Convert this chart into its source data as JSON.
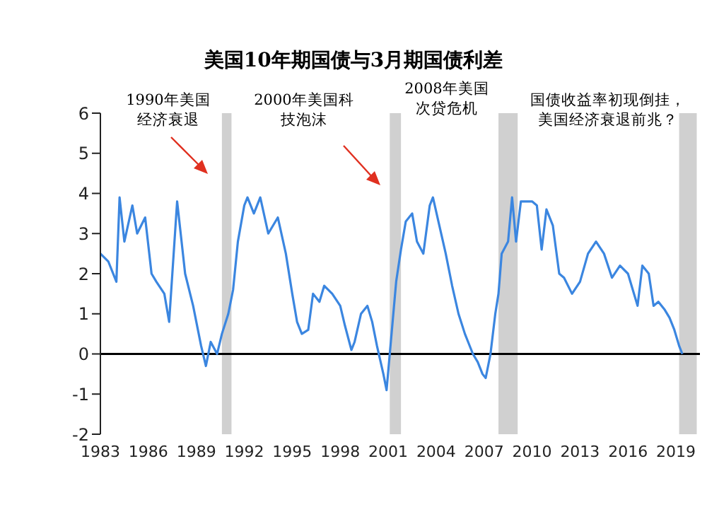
{
  "chart_data": {
    "type": "line",
    "title": "美国10年期国债与3月期国债利差",
    "annotations": [
      "1990年美国经济衰退",
      "2000年美国科技泡沫",
      "2008年美国次贷危机",
      "国债收益率初现倒挂，美国经济衰退前兆？"
    ],
    "x": [
      1983.0,
      1983.5,
      1984.0,
      1984.2,
      1984.5,
      1985.0,
      1985.3,
      1985.8,
      1986.2,
      1986.5,
      1987.0,
      1987.3,
      1987.5,
      1987.8,
      1988.3,
      1988.8,
      1989.3,
      1989.6,
      1989.9,
      1990.3,
      1990.6,
      1991.0,
      1991.3,
      1991.6,
      1992.0,
      1992.2,
      1992.6,
      1993.0,
      1993.5,
      1994.1,
      1994.6,
      1995.0,
      1995.3,
      1995.6,
      1996.0,
      1996.3,
      1996.7,
      1997.0,
      1997.5,
      1998.0,
      1998.3,
      1998.7,
      1998.9,
      1999.3,
      1999.7,
      2000.0,
      2000.3,
      2000.7,
      2000.9,
      2001.1,
      2001.5,
      2001.8,
      2002.1,
      2002.5,
      2002.8,
      2003.2,
      2003.6,
      2003.8,
      2004.2,
      2004.6,
      2005.0,
      2005.4,
      2005.8,
      2006.0,
      2006.3,
      2006.6,
      2006.9,
      2007.1,
      2007.4,
      2007.7,
      2007.9,
      2008.1,
      2008.5,
      2008.75,
      2009.0,
      2009.3,
      2009.7,
      2010.0,
      2010.3,
      2010.6,
      2010.9,
      2011.3,
      2011.7,
      2012.0,
      2012.5,
      2013.0,
      2013.5,
      2014.0,
      2014.5,
      2015.0,
      2015.5,
      2016.0,
      2016.3,
      2016.6,
      2016.9,
      2017.3,
      2017.6,
      2017.9,
      2018.3,
      2018.6,
      2018.9,
      2019.2,
      2019.4
    ],
    "series": [
      {
        "color": "#3b86e0",
        "values": [
          2.5,
          2.3,
          1.8,
          3.9,
          2.8,
          3.7,
          3.0,
          3.4,
          2.0,
          1.8,
          1.5,
          0.8,
          2.0,
          3.8,
          2.0,
          1.2,
          0.2,
          -0.3,
          0.3,
          0.0,
          0.5,
          1.0,
          1.6,
          2.8,
          3.7,
          3.9,
          3.5,
          3.9,
          3.0,
          3.4,
          2.5,
          1.5,
          0.8,
          0.5,
          0.6,
          1.5,
          1.3,
          1.7,
          1.5,
          1.2,
          0.7,
          0.1,
          0.3,
          1.0,
          1.2,
          0.8,
          0.2,
          -0.5,
          -0.9,
          0.0,
          1.8,
          2.6,
          3.3,
          3.5,
          2.8,
          2.5,
          3.7,
          3.9,
          3.2,
          2.5,
          1.7,
          1.0,
          0.5,
          0.3,
          0.0,
          -0.2,
          -0.5,
          -0.6,
          0.0,
          1.0,
          1.5,
          2.5,
          2.8,
          3.9,
          2.8,
          3.8,
          3.8,
          3.8,
          3.7,
          2.6,
          3.6,
          3.2,
          2.0,
          1.9,
          1.5,
          1.8,
          2.5,
          2.8,
          2.5,
          1.9,
          2.2,
          2.0,
          1.6,
          1.2,
          2.2,
          2.0,
          1.2,
          1.3,
          1.1,
          0.9,
          0.6,
          0.2,
          0.0
        ]
      }
    ],
    "xlim": [
      1983,
      2020.5
    ],
    "xticks": [
      1983,
      1986,
      1989,
      1992,
      1995,
      1998,
      2001,
      2004,
      2007,
      2010,
      2013,
      2016,
      2019
    ],
    "ylim": [
      -2,
      6
    ],
    "yticks": [
      -2,
      -1,
      0,
      1,
      2,
      3,
      4,
      5,
      6
    ],
    "bands": [
      {
        "axis": "x",
        "from": 1990.6,
        "to": 1991.2,
        "color": "#d0d0d0"
      },
      {
        "axis": "x",
        "from": 2001.1,
        "to": 2001.8,
        "color": "#d0d0d0"
      },
      {
        "axis": "x",
        "from": 2007.9,
        "to": 2009.1,
        "color": "#d0d0d0"
      },
      {
        "axis": "x",
        "from": 2019.2,
        "to": 2020.3,
        "color": "#d0d0d0"
      }
    ],
    "ref_lines": [
      {
        "axis": "y",
        "value": 0,
        "color": "#000000"
      }
    ],
    "grid": false,
    "legend": false,
    "marker": "none",
    "line_style": "solid"
  }
}
